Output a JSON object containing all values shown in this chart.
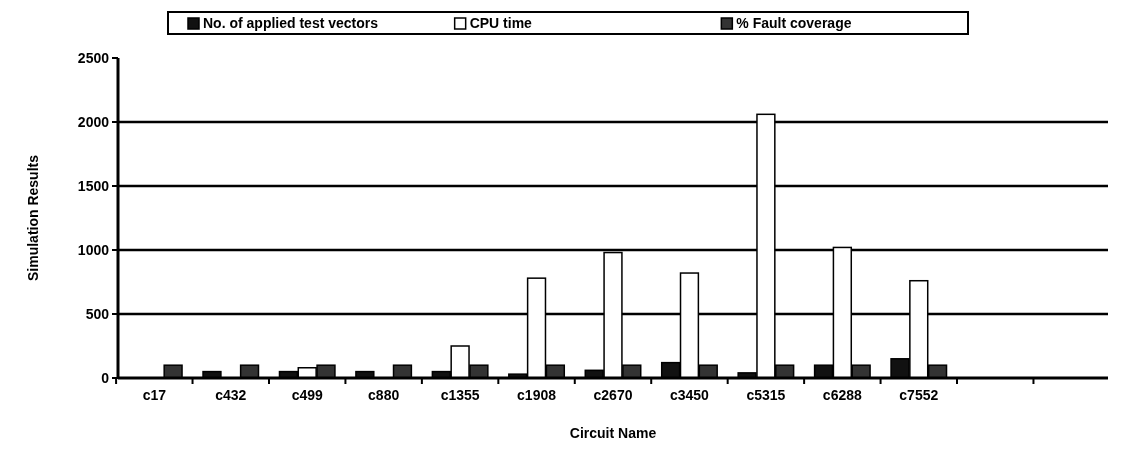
{
  "chart_data": {
    "type": "bar",
    "xlabel": "Circuit Name",
    "ylabel": "Simulation Results",
    "categories": [
      "c17",
      "c432",
      "c499",
      "c880",
      "c1355",
      "c1908",
      "c2670",
      "c3450",
      "c5315",
      "c6288",
      "c7552",
      null,
      null
    ],
    "series": [
      {
        "name": "No. of applied test vectors",
        "color": "#111111",
        "values": [
          null,
          50,
          50,
          50,
          50,
          30,
          60,
          120,
          40,
          100,
          150,
          null,
          null
        ]
      },
      {
        "name": "CPU time",
        "color": "#ffffff",
        "values": [
          null,
          null,
          80,
          null,
          250,
          780,
          980,
          820,
          2060,
          1020,
          760,
          null,
          null
        ]
      },
      {
        "name": "% Fault coverage",
        "color": "#333333",
        "values": [
          100,
          100,
          100,
          100,
          100,
          100,
          100,
          100,
          100,
          100,
          100,
          null,
          null
        ]
      }
    ],
    "ylim": [
      0,
      2500
    ],
    "yticks": [
      0,
      500,
      1000,
      1500,
      2000,
      2500
    ],
    "grid": "y",
    "legend": "top"
  }
}
